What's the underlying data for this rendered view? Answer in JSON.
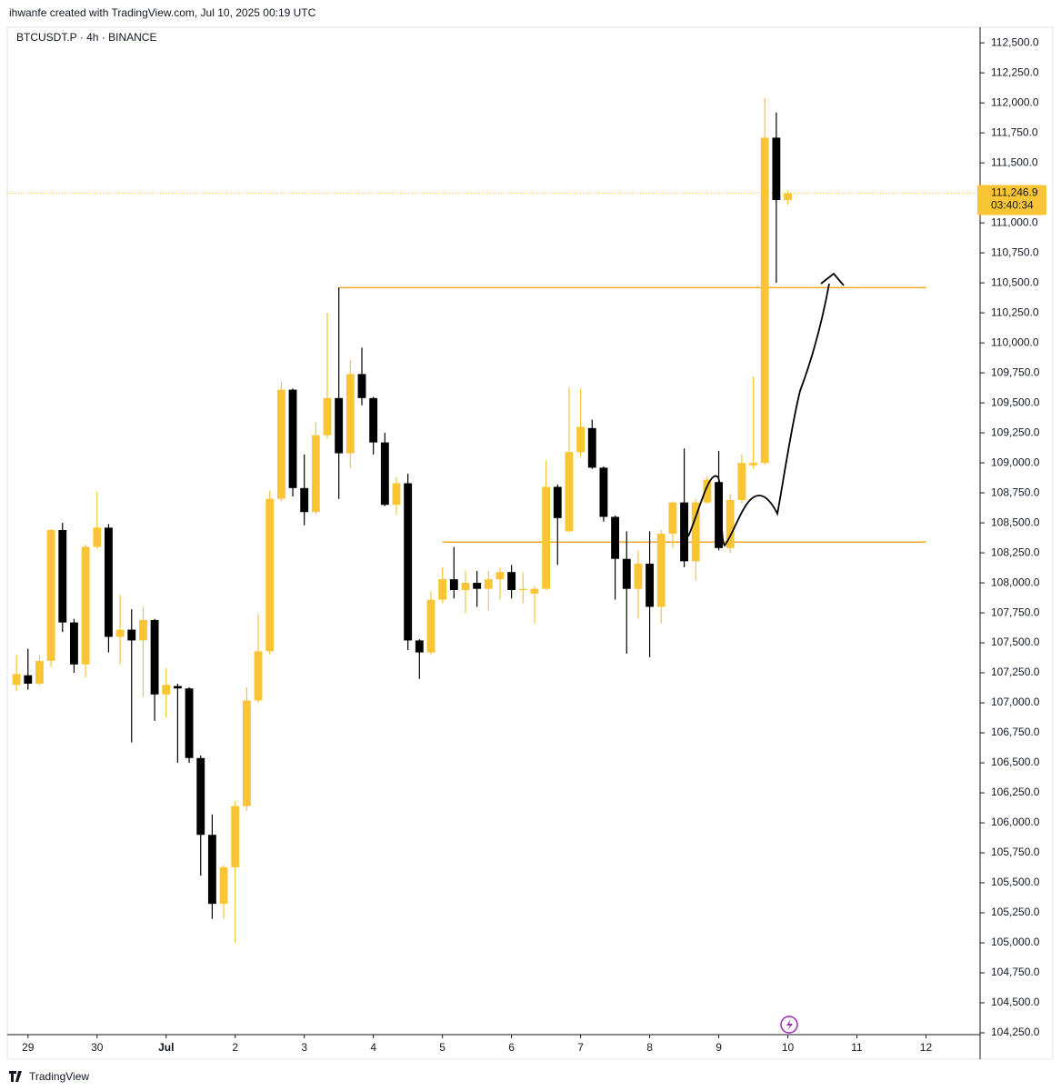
{
  "header": {
    "title": "ihwanfe created with TradingView.com, Jul 10, 2025 00:19 UTC"
  },
  "footer": {
    "brand": "TradingView"
  },
  "chart_data": {
    "type": "candlestick",
    "title": "BTCUSDT.P · 4h · BINANCE",
    "up_color": "#f9c534",
    "down_color": "#000000",
    "open": [
      107150,
      107230,
      107160,
      107350,
      108440,
      107670,
      107320,
      108300,
      108460,
      107550,
      107610,
      107520,
      107690,
      107070,
      107140,
      107120,
      106540,
      105900,
      105325,
      105630,
      106140,
      107020,
      107430,
      108700,
      109610,
      108790,
      108590,
      109230,
      109540,
      109080,
      109740,
      109540,
      109170,
      108650,
      108830,
      107520,
      107420,
      107860,
      108030,
      107940,
      108000,
      107950,
      108030,
      108090,
      107940,
      107910,
      107950,
      108800,
      108430,
      109090,
      109290,
      108960,
      108550,
      108200,
      107950,
      108160,
      107800,
      108410,
      108670,
      108180,
      108670,
      108840,
      108290,
      108690,
      108980,
      109000,
      111710,
      111190
    ],
    "high": [
      107400,
      107450,
      107400,
      108450,
      108500,
      107700,
      108320,
      108760,
      108490,
      107900,
      107780,
      107800,
      107700,
      107290,
      107160,
      107130,
      106560,
      106070,
      105650,
      106180,
      107130,
      107740,
      108770,
      109680,
      109620,
      109070,
      109340,
      110250,
      110460,
      109860,
      109960,
      109550,
      109250,
      108880,
      108910,
      107530,
      107930,
      108130,
      108300,
      108100,
      108100,
      108100,
      108130,
      108150,
      108090,
      107970,
      109020,
      108820,
      109630,
      109620,
      109360,
      108970,
      108560,
      108430,
      108270,
      108430,
      108440,
      108680,
      109120,
      108700,
      108890,
      109100,
      108740,
      109070,
      109720,
      112040,
      111920,
      111270
    ],
    "low": [
      107100,
      107110,
      107150,
      107300,
      107590,
      107250,
      107210,
      108280,
      107420,
      107320,
      106670,
      107050,
      106850,
      106880,
      106500,
      106500,
      105560,
      105200,
      105200,
      105000,
      106100,
      107000,
      107400,
      108680,
      108720,
      108480,
      108570,
      109200,
      108700,
      108960,
      109480,
      109070,
      108640,
      108570,
      107440,
      107200,
      107400,
      107830,
      107870,
      107750,
      107800,
      107770,
      107860,
      107870,
      107830,
      107660,
      107940,
      108150,
      108420,
      109050,
      108950,
      108510,
      107860,
      107410,
      107700,
      107380,
      107660,
      108290,
      108130,
      108020,
      108660,
      108270,
      108250,
      108660,
      108950,
      108980,
      110500,
      111150
    ],
    "close": [
      107240,
      107160,
      107350,
      108440,
      107670,
      107320,
      108300,
      108460,
      107550,
      107610,
      107520,
      107690,
      107070,
      107150,
      107120,
      106540,
      105900,
      105325,
      105630,
      106140,
      107020,
      107430,
      108700,
      109610,
      108790,
      108590,
      109230,
      109540,
      109080,
      109740,
      109540,
      109170,
      108650,
      108830,
      107520,
      107420,
      107860,
      108030,
      107940,
      108000,
      107950,
      108030,
      108090,
      107940,
      107950,
      107950,
      108800,
      108540,
      109090,
      109300,
      108960,
      108550,
      108200,
      107950,
      108160,
      107800,
      108410,
      108670,
      108180,
      108670,
      108860,
      108290,
      108690,
      109000,
      109000,
      111710,
      111190,
      111247
    ],
    "xlim": [
      -0.8,
      83.7
    ],
    "xticks": [
      {
        "value": 1,
        "label": "29"
      },
      {
        "value": 7,
        "label": "30"
      },
      {
        "value": 13,
        "label": "Jul"
      },
      {
        "value": 19,
        "label": "2"
      },
      {
        "value": 25,
        "label": "3"
      },
      {
        "value": 31,
        "label": "4"
      },
      {
        "value": 37,
        "label": "5"
      },
      {
        "value": 43,
        "label": "6"
      },
      {
        "value": 49,
        "label": "7"
      },
      {
        "value": 55,
        "label": "8"
      },
      {
        "value": 61,
        "label": "9"
      },
      {
        "value": 67,
        "label": "10"
      },
      {
        "value": 73,
        "label": "11"
      },
      {
        "value": 79,
        "label": "12"
      }
    ],
    "ylim": [
      104235,
      112630
    ],
    "yticks": [
      {
        "value": 104250,
        "label": "104,250.0"
      },
      {
        "value": 104500,
        "label": "104,500.0"
      },
      {
        "value": 104750,
        "label": "104,750.0"
      },
      {
        "value": 105000,
        "label": "105,000.0"
      },
      {
        "value": 105250,
        "label": "105,250.0"
      },
      {
        "value": 105500,
        "label": "105,500.0"
      },
      {
        "value": 105750,
        "label": "105,750.0"
      },
      {
        "value": 106000,
        "label": "106,000.0"
      },
      {
        "value": 106250,
        "label": "106,250.0"
      },
      {
        "value": 106500,
        "label": "106,500.0"
      },
      {
        "value": 106750,
        "label": "106,750.0"
      },
      {
        "value": 107000,
        "label": "107,000.0"
      },
      {
        "value": 107250,
        "label": "107,250.0"
      },
      {
        "value": 107500,
        "label": "107,500.0"
      },
      {
        "value": 107750,
        "label": "107,750.0"
      },
      {
        "value": 108000,
        "label": "108,000.0"
      },
      {
        "value": 108250,
        "label": "108,250.0"
      },
      {
        "value": 108500,
        "label": "108,500.0"
      },
      {
        "value": 108750,
        "label": "108,750.0"
      },
      {
        "value": 109000,
        "label": "109,000.0"
      },
      {
        "value": 109250,
        "label": "109,250.0"
      },
      {
        "value": 109500,
        "label": "109,500.0"
      },
      {
        "value": 109750,
        "label": "109,750.0"
      },
      {
        "value": 110000,
        "label": "110,000.0"
      },
      {
        "value": 110250,
        "label": "110,250.0"
      },
      {
        "value": 110500,
        "label": "110,500.0"
      },
      {
        "value": 110750,
        "label": "110,750.0"
      },
      {
        "value": 111000,
        "label": "111,000.0"
      },
      {
        "value": 111250,
        "label": "111,250.0"
      },
      {
        "value": 111500,
        "label": "111,500.0"
      },
      {
        "value": 111750,
        "label": "111,750.0"
      },
      {
        "value": 112000,
        "label": "112,000.0"
      },
      {
        "value": 112250,
        "label": "112,250.0"
      },
      {
        "value": 112500,
        "label": "112,500.0"
      }
    ],
    "hlines": [
      {
        "value": 110460,
        "from": 28,
        "to": 79,
        "color": "#f5a623"
      },
      {
        "value": 108340,
        "from": 37,
        "to": 79,
        "color": "#f5a623"
      }
    ],
    "last_price": {
      "value": 111246.9,
      "label": "111,246.9",
      "countdown": "03:40:34",
      "color": "#f9c534"
    }
  }
}
